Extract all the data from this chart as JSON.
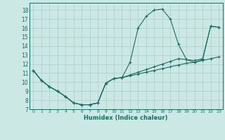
{
  "xlabel": "Humidex (Indice chaleur)",
  "ylabel": "",
  "background_color": "#cce8e4",
  "grid_color": "#aacfcb",
  "line_color": "#1a6e64",
  "xlim": [
    -0.5,
    23.5
  ],
  "ylim": [
    7,
    18.8
  ],
  "yticks": [
    7,
    8,
    9,
    10,
    11,
    12,
    13,
    14,
    15,
    16,
    17,
    18
  ],
  "xticks": [
    0,
    1,
    2,
    3,
    4,
    5,
    6,
    7,
    8,
    9,
    10,
    11,
    12,
    13,
    14,
    15,
    16,
    17,
    18,
    19,
    20,
    21,
    22,
    23
  ],
  "series": [
    [
      11.3,
      10.2,
      9.5,
      9.0,
      8.4,
      7.7,
      7.5,
      7.5,
      7.7,
      9.9,
      10.4,
      10.5,
      12.2,
      16.0,
      17.3,
      18.0,
      18.1,
      17.0,
      14.2,
      12.5,
      12.2,
      12.5,
      16.2,
      16.1
    ],
    [
      11.3,
      10.2,
      9.5,
      9.0,
      8.4,
      7.7,
      7.5,
      7.5,
      7.7,
      9.9,
      10.4,
      10.5,
      10.7,
      10.9,
      11.1,
      11.3,
      11.5,
      11.7,
      11.9,
      12.1,
      12.2,
      12.4,
      12.6,
      12.8
    ],
    [
      11.3,
      10.2,
      9.5,
      9.0,
      8.4,
      7.7,
      7.5,
      7.5,
      7.7,
      9.9,
      10.4,
      10.5,
      10.8,
      11.1,
      11.4,
      11.7,
      12.0,
      12.3,
      12.6,
      12.5,
      12.4,
      12.6,
      16.2,
      16.1
    ]
  ]
}
